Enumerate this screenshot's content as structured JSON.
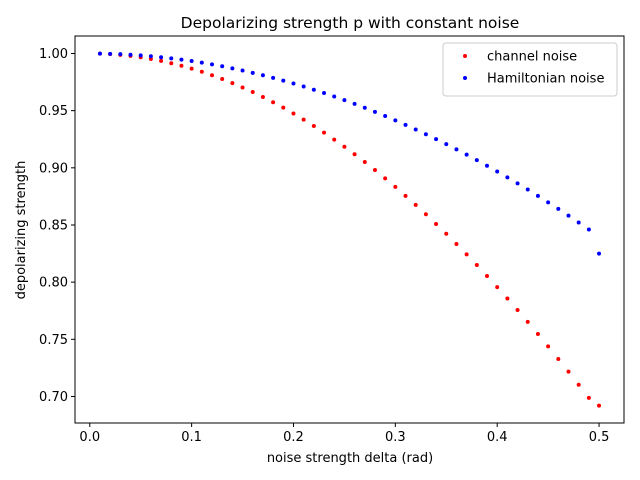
{
  "chart_data": {
    "type": "scatter",
    "title": "Depolarizing strength p with constant noise",
    "xlabel": "noise strength delta (rad)",
    "ylabel": "depolarizing strength",
    "xlim": [
      -0.0145,
      0.5245
    ],
    "ylim": [
      0.6768,
      1.0153
    ],
    "x_ticks": [
      0.0,
      0.1,
      0.2,
      0.3,
      0.4,
      0.5
    ],
    "x_tick_labels": [
      "0.0",
      "0.1",
      "0.2",
      "0.3",
      "0.4",
      "0.5"
    ],
    "y_ticks": [
      0.7,
      0.75,
      0.8,
      0.85,
      0.9,
      0.95,
      1.0
    ],
    "y_tick_labels": [
      "0.70",
      "0.75",
      "0.80",
      "0.85",
      "0.90",
      "0.95",
      "1.00"
    ],
    "grid": false,
    "legend_position": "top-right",
    "x": [
      0.01,
      0.02,
      0.03,
      0.04,
      0.05,
      0.06,
      0.07,
      0.08,
      0.09,
      0.1,
      0.11,
      0.12,
      0.13,
      0.14,
      0.15,
      0.16,
      0.17,
      0.18,
      0.19,
      0.2,
      0.21,
      0.22,
      0.23,
      0.24,
      0.25,
      0.26,
      0.27,
      0.28,
      0.29,
      0.3,
      0.31,
      0.32,
      0.33,
      0.34,
      0.35,
      0.36,
      0.37,
      0.38,
      0.39,
      0.4,
      0.41,
      0.42,
      0.43,
      0.44,
      0.45,
      0.46,
      0.47,
      0.48,
      0.49,
      0.5
    ],
    "series": [
      {
        "name": "channel noise",
        "color": "#ff0000",
        "values": [
          0.9999,
          0.9995,
          0.9988,
          0.9979,
          0.9967,
          0.9952,
          0.9935,
          0.9915,
          0.9893,
          0.9868,
          0.984,
          0.981,
          0.9777,
          0.9741,
          0.9703,
          0.9663,
          0.9619,
          0.9574,
          0.9526,
          0.9475,
          0.9422,
          0.9366,
          0.9308,
          0.9247,
          0.9184,
          0.9119,
          0.9051,
          0.8981,
          0.8908,
          0.8833,
          0.8755,
          0.8676,
          0.8594,
          0.8509,
          0.8423,
          0.8334,
          0.8243,
          0.815,
          0.8054,
          0.7957,
          0.7857,
          0.7756,
          0.7652,
          0.7546,
          0.7438,
          0.7328,
          0.7217,
          0.7103,
          0.6988,
          0.692
        ]
      },
      {
        "name": "Hamiltonian noise",
        "color": "#0000ff",
        "values": [
          0.9999,
          0.9997,
          0.9994,
          0.9989,
          0.9983,
          0.9976,
          0.9967,
          0.9957,
          0.9946,
          0.9934,
          0.992,
          0.9905,
          0.9888,
          0.987,
          0.9851,
          0.9831,
          0.981,
          0.9787,
          0.9763,
          0.9738,
          0.9711,
          0.9683,
          0.9654,
          0.9624,
          0.9592,
          0.9559,
          0.9525,
          0.9489,
          0.9453,
          0.9415,
          0.9376,
          0.9335,
          0.9294,
          0.9251,
          0.9207,
          0.9161,
          0.9115,
          0.9067,
          0.9018,
          0.8968,
          0.8916,
          0.8864,
          0.881,
          0.8755,
          0.8698,
          0.8641,
          0.8582,
          0.8522,
          0.8461,
          0.825
        ]
      }
    ]
  }
}
